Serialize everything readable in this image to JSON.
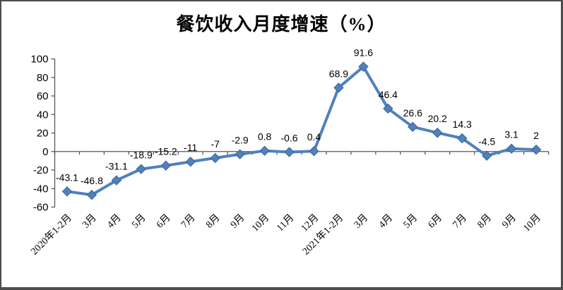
{
  "window": {
    "background": "#ffffff",
    "border_color": "#4d4d4d"
  },
  "chart_data": {
    "type": "line",
    "title": "餐饮收入月度增速（%）",
    "categories": [
      "2020年1-2月",
      "3月",
      "4月",
      "5月",
      "6月",
      "7月",
      "8月",
      "9月",
      "10月",
      "11月",
      "12月",
      "2021年1-2月",
      "3月",
      "4月",
      "5月",
      "6月",
      "7月",
      "8月",
      "9月",
      "10月"
    ],
    "series": [
      {
        "name": "餐饮收入月度增速",
        "values": [
          -43.1,
          -46.8,
          -31.1,
          -18.9,
          -15.2,
          -11,
          -7,
          -2.9,
          0.8,
          -0.6,
          0.4,
          68.9,
          91.6,
          46.4,
          26.6,
          20.2,
          14.3,
          -4.5,
          3.1,
          2
        ]
      }
    ],
    "data_labels": [
      "-43.1",
      "-46.8",
      "-31.1",
      "-18.9",
      "-15.2",
      "-11",
      "-7",
      "-2.9",
      "0.8",
      "-0.6",
      "0.4",
      "68.9",
      "91.6",
      "46.4",
      "26.6",
      "20.2",
      "14.3",
      "-4.5",
      "3.1",
      "2"
    ],
    "y_ticks": [
      100,
      80,
      60,
      40,
      20,
      0,
      -20,
      -40,
      -60
    ],
    "ylim": [
      -60,
      100
    ],
    "xlabel": "",
    "ylabel": "",
    "grid": false,
    "legend": "none",
    "line_color": "#4F81BD",
    "marker": "diamond",
    "marker_color": "#4F81BD",
    "marker_edge_color": "#3A6494",
    "axis_color": "#595959",
    "label_color": "#000000"
  }
}
